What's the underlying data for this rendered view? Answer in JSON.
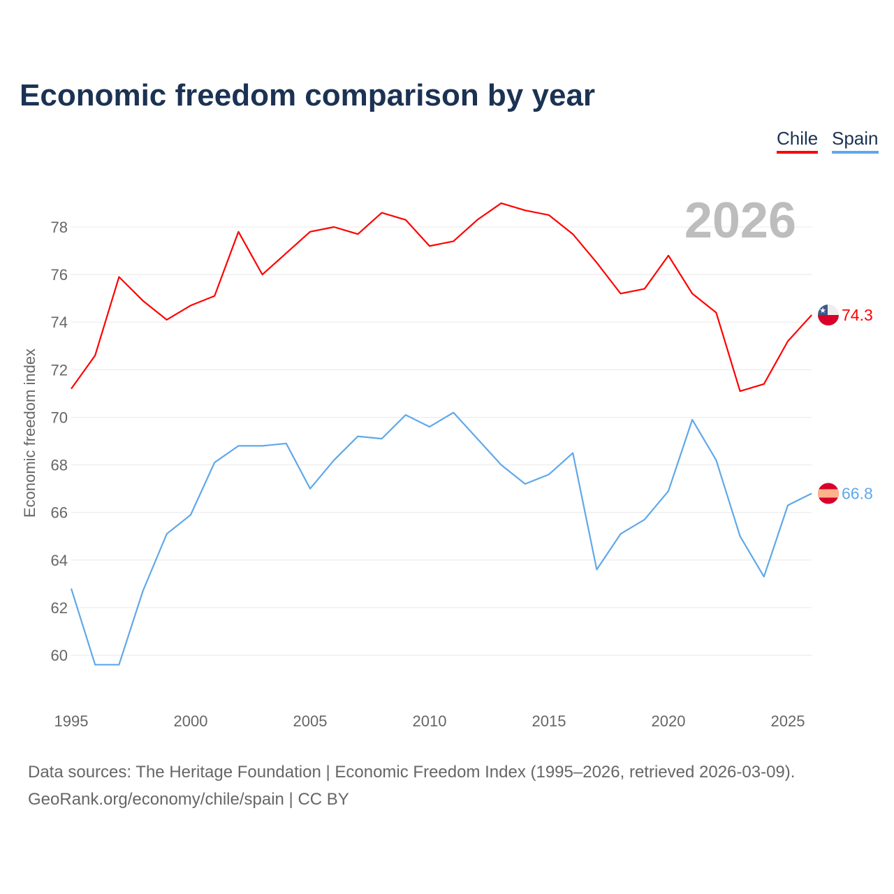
{
  "title": "Economic freedom comparison by year",
  "source_line1": "Data sources: The Heritage Foundation | Economic Freedom Index (1995–2026, retrieved 2026-03-09).",
  "source_line2": "GeoRank.org/economy/chile/spain | CC BY",
  "chart_data": {
    "type": "line",
    "title": "Economic freedom comparison by year",
    "xlabel": "",
    "ylabel": "Economic freedom index",
    "watermark_year": "2026",
    "xlim": [
      1995,
      2026
    ],
    "ylim": [
      58.5,
      80
    ],
    "yticks": [
      60,
      62,
      64,
      66,
      68,
      70,
      72,
      74,
      76,
      78
    ],
    "xticks": [
      1995,
      2000,
      2005,
      2010,
      2015,
      2020,
      2025
    ],
    "grid": true,
    "legend_position": "top-right",
    "x": [
      1995,
      1996,
      1997,
      1998,
      1999,
      2000,
      2001,
      2002,
      2003,
      2004,
      2005,
      2006,
      2007,
      2008,
      2009,
      2010,
      2011,
      2012,
      2013,
      2014,
      2015,
      2016,
      2017,
      2018,
      2019,
      2020,
      2021,
      2022,
      2023,
      2024,
      2025,
      2026
    ],
    "series": [
      {
        "name": "Chile",
        "color": "#ff0000",
        "end_label": "74.3",
        "values": [
          71.2,
          72.6,
          75.9,
          74.9,
          74.1,
          74.7,
          75.1,
          77.8,
          76.0,
          76.9,
          77.8,
          78.0,
          77.7,
          78.6,
          78.3,
          77.2,
          77.4,
          78.3,
          79.0,
          78.7,
          78.5,
          77.7,
          76.5,
          75.2,
          75.4,
          76.8,
          75.2,
          74.4,
          71.1,
          71.4,
          73.2,
          74.3
        ]
      },
      {
        "name": "Spain",
        "color": "#5fa8ea",
        "end_label": "66.8",
        "values": [
          62.8,
          59.6,
          59.6,
          62.7,
          65.1,
          65.9,
          68.1,
          68.8,
          68.8,
          68.9,
          67.0,
          68.2,
          69.2,
          69.1,
          70.1,
          69.6,
          70.2,
          69.1,
          68.0,
          67.2,
          67.6,
          68.5,
          63.6,
          65.1,
          65.7,
          66.9,
          69.9,
          68.2,
          65.0,
          63.3,
          66.3,
          66.8
        ]
      }
    ]
  }
}
